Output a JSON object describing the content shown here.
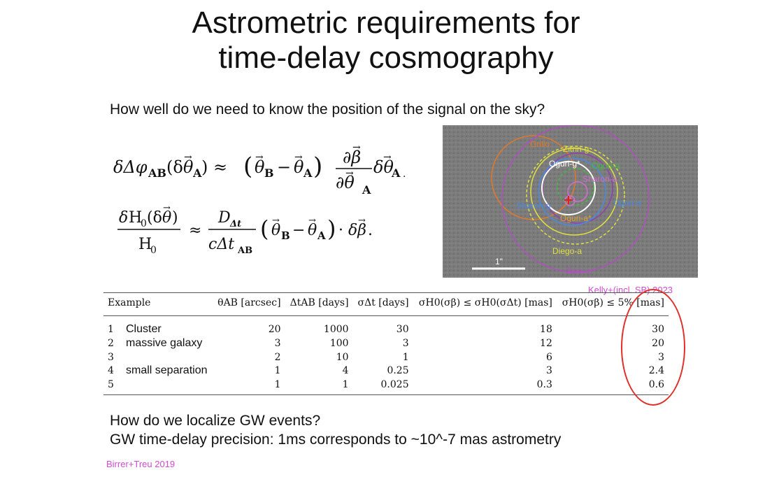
{
  "title_line1": "Astrometric requirements for",
  "title_line2": "time-delay cosmography",
  "question": "How well do we need to know the position of the signal on the sky?",
  "figure_labels": {
    "zitrin_g": "Zitrin-g",
    "oguri_g_star": "Oguri-g*",
    "oguri_a": "Oguri-a",
    "sharon_a": "Sharon-a",
    "grillo": "Grillo",
    "sharon_g": "Sharon-g",
    "oguri": "Oguri-a",
    "oguri_a_star": "Oguri-a*",
    "diego_a": "Diego-a",
    "zitrin_c": "Zitrin-c*",
    "scale": "1\"",
    "orange": "Grillo"
  },
  "figure_credit": "Kelly+(incl. SB) 2023",
  "table": {
    "headers": [
      "Example",
      "θAB [arcsec]",
      "ΔtAB [days]",
      "σΔt [days]",
      "σH0(σβ) ≤ σH0(σΔt) [mas]",
      "σH0(σβ) ≤ 5% [mas]"
    ],
    "rows": [
      {
        "n": "1",
        "label": "Cluster",
        "theta": "20",
        "dt": "1000",
        "sdt": "30",
        "s1": "18",
        "s2": "30"
      },
      {
        "n": "2",
        "label": "massive galaxy",
        "theta": "3",
        "dt": "100",
        "sdt": "3",
        "s1": "12",
        "s2": "20"
      },
      {
        "n": "3",
        "label": "",
        "theta": "2",
        "dt": "10",
        "sdt": "1",
        "s1": "6",
        "s2": "3"
      },
      {
        "n": "4",
        "label": "small separation",
        "theta": "1",
        "dt": "4",
        "sdt": "0.25",
        "s1": "3",
        "s2": "2.4"
      },
      {
        "n": "5",
        "label": "",
        "theta": "1",
        "dt": "1",
        "sdt": "0.025",
        "s1": "0.3",
        "s2": "0.6"
      }
    ]
  },
  "bottom_line1": "How do we localize GW events?",
  "bottom_line2": "GW time-delay precision: 1ms corresponds to ~10^-7 mas astrometry",
  "paper_credit": "Birrer+Treu 2019",
  "colors": {
    "credit": "#d24cd2",
    "highlight": "#e0302a"
  }
}
